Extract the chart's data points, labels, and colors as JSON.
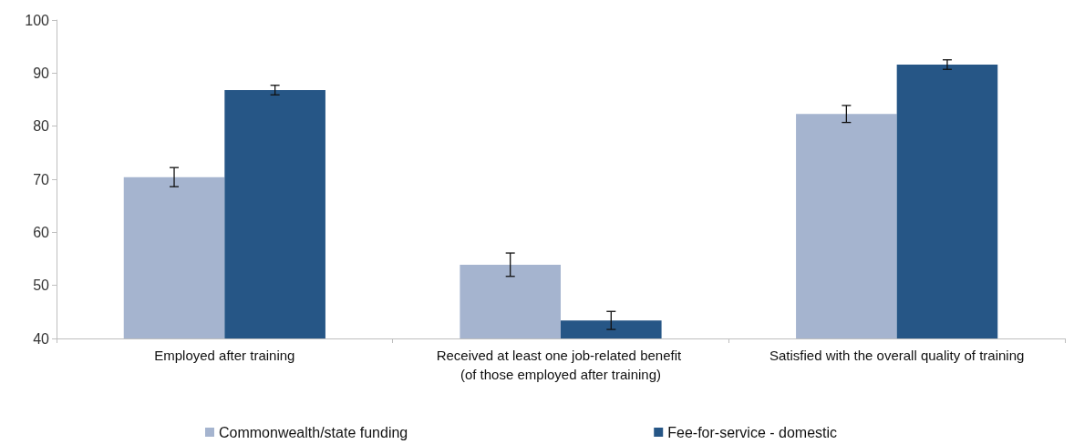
{
  "chart_data": {
    "type": "bar",
    "categories": [
      "Employed after training",
      "Received at least one job-related benefit (of those employed after training)",
      "Satisfied with the overall quality of training"
    ],
    "series": [
      {
        "name": "Commonwealth/state funding",
        "color": "#a5b4cf",
        "values": [
          70.4,
          53.9,
          82.3
        ],
        "errors": [
          1.8,
          2.2,
          1.6
        ]
      },
      {
        "name": "Fee-for-service - domestic",
        "color": "#265686",
        "values": [
          86.8,
          43.4,
          91.6
        ],
        "errors": [
          0.9,
          1.7,
          0.9
        ]
      }
    ],
    "ylim": [
      40,
      100
    ],
    "yticks": [
      40,
      50,
      60,
      70,
      80,
      90,
      100
    ],
    "grid": false,
    "legend": "bottom"
  }
}
